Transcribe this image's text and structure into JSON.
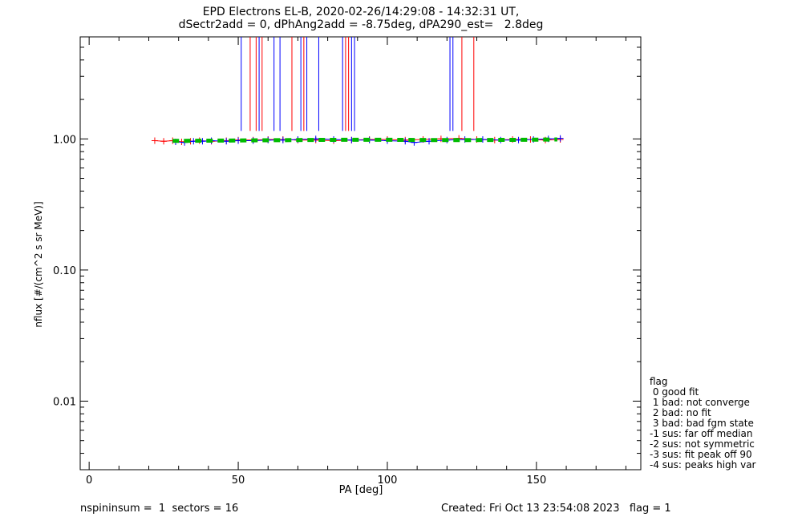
{
  "title_line1": "EPD Electrons EL-B, 2020-02-26/14:29:08 - 14:32:31 UT,",
  "title_line2": "dSectr2add = 0, dPhAng2add = -8.75deg, dPA290_est=   2.8deg",
  "footer": {
    "left": "nspininsum =  1  sectors = 16",
    "right": "Created: Fri Oct 13 23:54:08 2023   flag = 1"
  },
  "legend": {
    "title": "flag",
    "items": [
      " 0 good fit",
      " 1 bad: not converge",
      " 2 bad: no fit",
      " 3 bad: bad fgm state",
      "-1 sus: far off median",
      "-2 sus: not symmetric",
      "-3 sus: fit peak off 90",
      "-4 sus: peaks high var"
    ]
  },
  "chart_data": {
    "type": "line",
    "title": "EPD Electrons EL-B, 2020-02-26/14:29:08 - 14:32:31 UT, dSectr2add = 0, dPhAng2add = -8.75deg, dPA290_est=   2.8deg",
    "xlabel": "PA [deg]",
    "ylabel": "nflux [#/(cm^2 s sr MeV)]",
    "xlim": [
      -3,
      185
    ],
    "ylim": [
      0.003,
      6
    ],
    "yscale": "log",
    "xticks": [
      0,
      50,
      100,
      150
    ],
    "yticks": [
      0.01,
      0.1,
      1.0
    ],
    "ytick_labels": [
      "0.01",
      "0.10",
      "1.00"
    ],
    "series": [
      {
        "color": "#ff0000",
        "marker": "+",
        "x": [
          22,
          25,
          28,
          31,
          34,
          37,
          41,
          46,
          50,
          55,
          60,
          65,
          70,
          76,
          82,
          88,
          94,
          100,
          106,
          112,
          118,
          124,
          130,
          136,
          142,
          148,
          153,
          158
        ],
        "y": [
          0.97,
          0.96,
          0.97,
          0.95,
          0.96,
          0.97,
          0.96,
          0.97,
          0.98,
          0.98,
          0.99,
          0.99,
          0.98,
          0.98,
          0.97,
          0.98,
          0.99,
          0.99,
          0.98,
          0.99,
          1.0,
          1.01,
          0.99,
          0.98,
          0.99,
          0.99,
          0.98,
          0.99
        ]
      },
      {
        "color": "#0000ff",
        "marker": "+",
        "x": [
          29,
          32,
          35,
          38,
          41,
          46,
          50,
          55,
          60,
          65,
          70,
          76,
          82,
          88,
          94,
          100,
          106,
          109,
          114,
          120,
          126,
          132,
          138,
          144,
          149,
          154,
          158
        ],
        "y": [
          0.95,
          0.94,
          0.96,
          0.96,
          0.97,
          0.96,
          0.97,
          0.97,
          0.98,
          0.98,
          0.99,
          1.0,
          0.99,
          0.98,
          0.98,
          0.97,
          0.96,
          0.94,
          0.96,
          0.98,
          0.99,
          0.99,
          0.98,
          0.98,
          0.99,
          1.0,
          1.01
        ]
      },
      {
        "color": "#00bb00",
        "style": "dashed-fit",
        "x": [
          28,
          40,
          55,
          70,
          85,
          100,
          115,
          130,
          145,
          157
        ],
        "y": [
          0.965,
          0.97,
          0.975,
          0.98,
          0.985,
          0.985,
          0.98,
          0.98,
          0.985,
          0.99
        ]
      }
    ],
    "vertical_lines": [
      {
        "color": "#0000ff",
        "x": [
          51,
          57,
          62,
          64,
          71,
          73,
          77,
          85,
          88,
          89,
          121,
          122
        ]
      },
      {
        "color": "#ff0000",
        "x": [
          54,
          56,
          58,
          68,
          72,
          86,
          87,
          125,
          129
        ]
      }
    ],
    "vertical_line_range": [
      1.15,
      6
    ]
  }
}
